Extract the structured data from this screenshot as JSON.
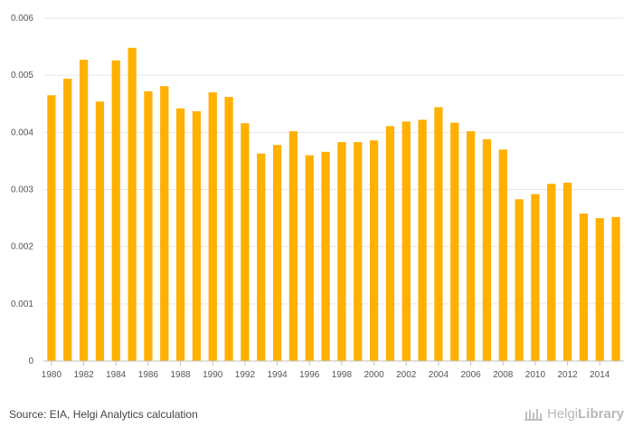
{
  "chart_data": {
    "type": "bar",
    "categories": [
      "1980",
      "1981",
      "1982",
      "1983",
      "1984",
      "1985",
      "1986",
      "1987",
      "1988",
      "1989",
      "1990",
      "1991",
      "1992",
      "1993",
      "1994",
      "1995",
      "1996",
      "1997",
      "1998",
      "1999",
      "2000",
      "2001",
      "2002",
      "2003",
      "2004",
      "2005",
      "2006",
      "2007",
      "2008",
      "2009",
      "2010",
      "2011",
      "2012",
      "2013",
      "2014",
      "2015"
    ],
    "values": [
      0.00465,
      0.00494,
      0.00527,
      0.00454,
      0.00526,
      0.00548,
      0.00472,
      0.00481,
      0.00442,
      0.00437,
      0.0047,
      0.00462,
      0.00416,
      0.00363,
      0.00378,
      0.00402,
      0.0036,
      0.00366,
      0.00383,
      0.00383,
      0.00386,
      0.00411,
      0.00419,
      0.00422,
      0.00444,
      0.00417,
      0.00402,
      0.00388,
      0.0037,
      0.00283,
      0.00292,
      0.0031,
      0.00312,
      0.00258,
      0.0025,
      0.00252
    ],
    "x_tick_labels": [
      "1980",
      "1982",
      "1984",
      "1986",
      "1988",
      "1990",
      "1992",
      "1994",
      "1996",
      "1998",
      "2000",
      "2002",
      "2004",
      "2006",
      "2008",
      "2010",
      "2012",
      "2014"
    ],
    "y_tick_labels": [
      "0",
      "0.001",
      "0.002",
      "0.003",
      "0.004",
      "0.005",
      "0.006"
    ],
    "ylim": [
      0,
      0.006
    ],
    "grid": true,
    "bar_color": "#ffb000",
    "title": "",
    "xlabel": "",
    "ylabel": ""
  },
  "footer": {
    "source": "Source: EIA, Helgi Analytics calculation",
    "brand_light": "Helgi",
    "brand_bold": "Library",
    "brand_icon": "library-icon"
  }
}
